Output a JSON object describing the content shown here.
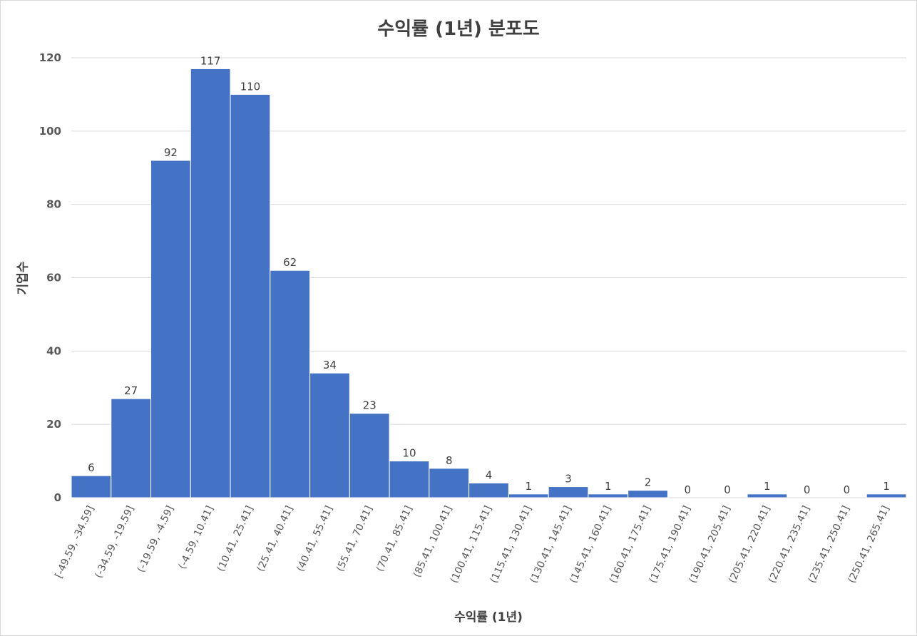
{
  "chart_data": {
    "type": "bar",
    "title": "수익률 (1년) 분포도",
    "xlabel": "수익률 (1년)",
    "ylabel": "기업수",
    "categories": [
      "[-49.59, -34.59]",
      "(-34.59, -19.59]",
      "(-19.59, -4.59]",
      "(-4.59, 10.41]",
      "(10.41, 25.41]",
      "(25.41, 40.41]",
      "(40.41, 55.41]",
      "(55.41, 70.41]",
      "(70.41, 85.41]",
      "(85.41, 100.41]",
      "(100.41, 115.41]",
      "(115.41, 130.41]",
      "(130.41, 145.41]",
      "(145.41, 160.41]",
      "(160.41, 175.41]",
      "(175.41, 190.41]",
      "(190.41, 205.41]",
      "(205.41, 220.41]",
      "(220.41, 235.41]",
      "(235.41, 250.41]",
      "(250.41, 265.41]"
    ],
    "values": [
      6,
      27,
      92,
      117,
      110,
      62,
      34,
      23,
      10,
      8,
      4,
      1,
      3,
      1,
      2,
      0,
      0,
      1,
      0,
      0,
      1
    ],
    "ylim": [
      0,
      120
    ],
    "yticks": [
      0,
      20,
      40,
      60,
      80,
      100,
      120
    ],
    "grid": true,
    "bar_color": "#4472c4",
    "data_labels": true
  }
}
